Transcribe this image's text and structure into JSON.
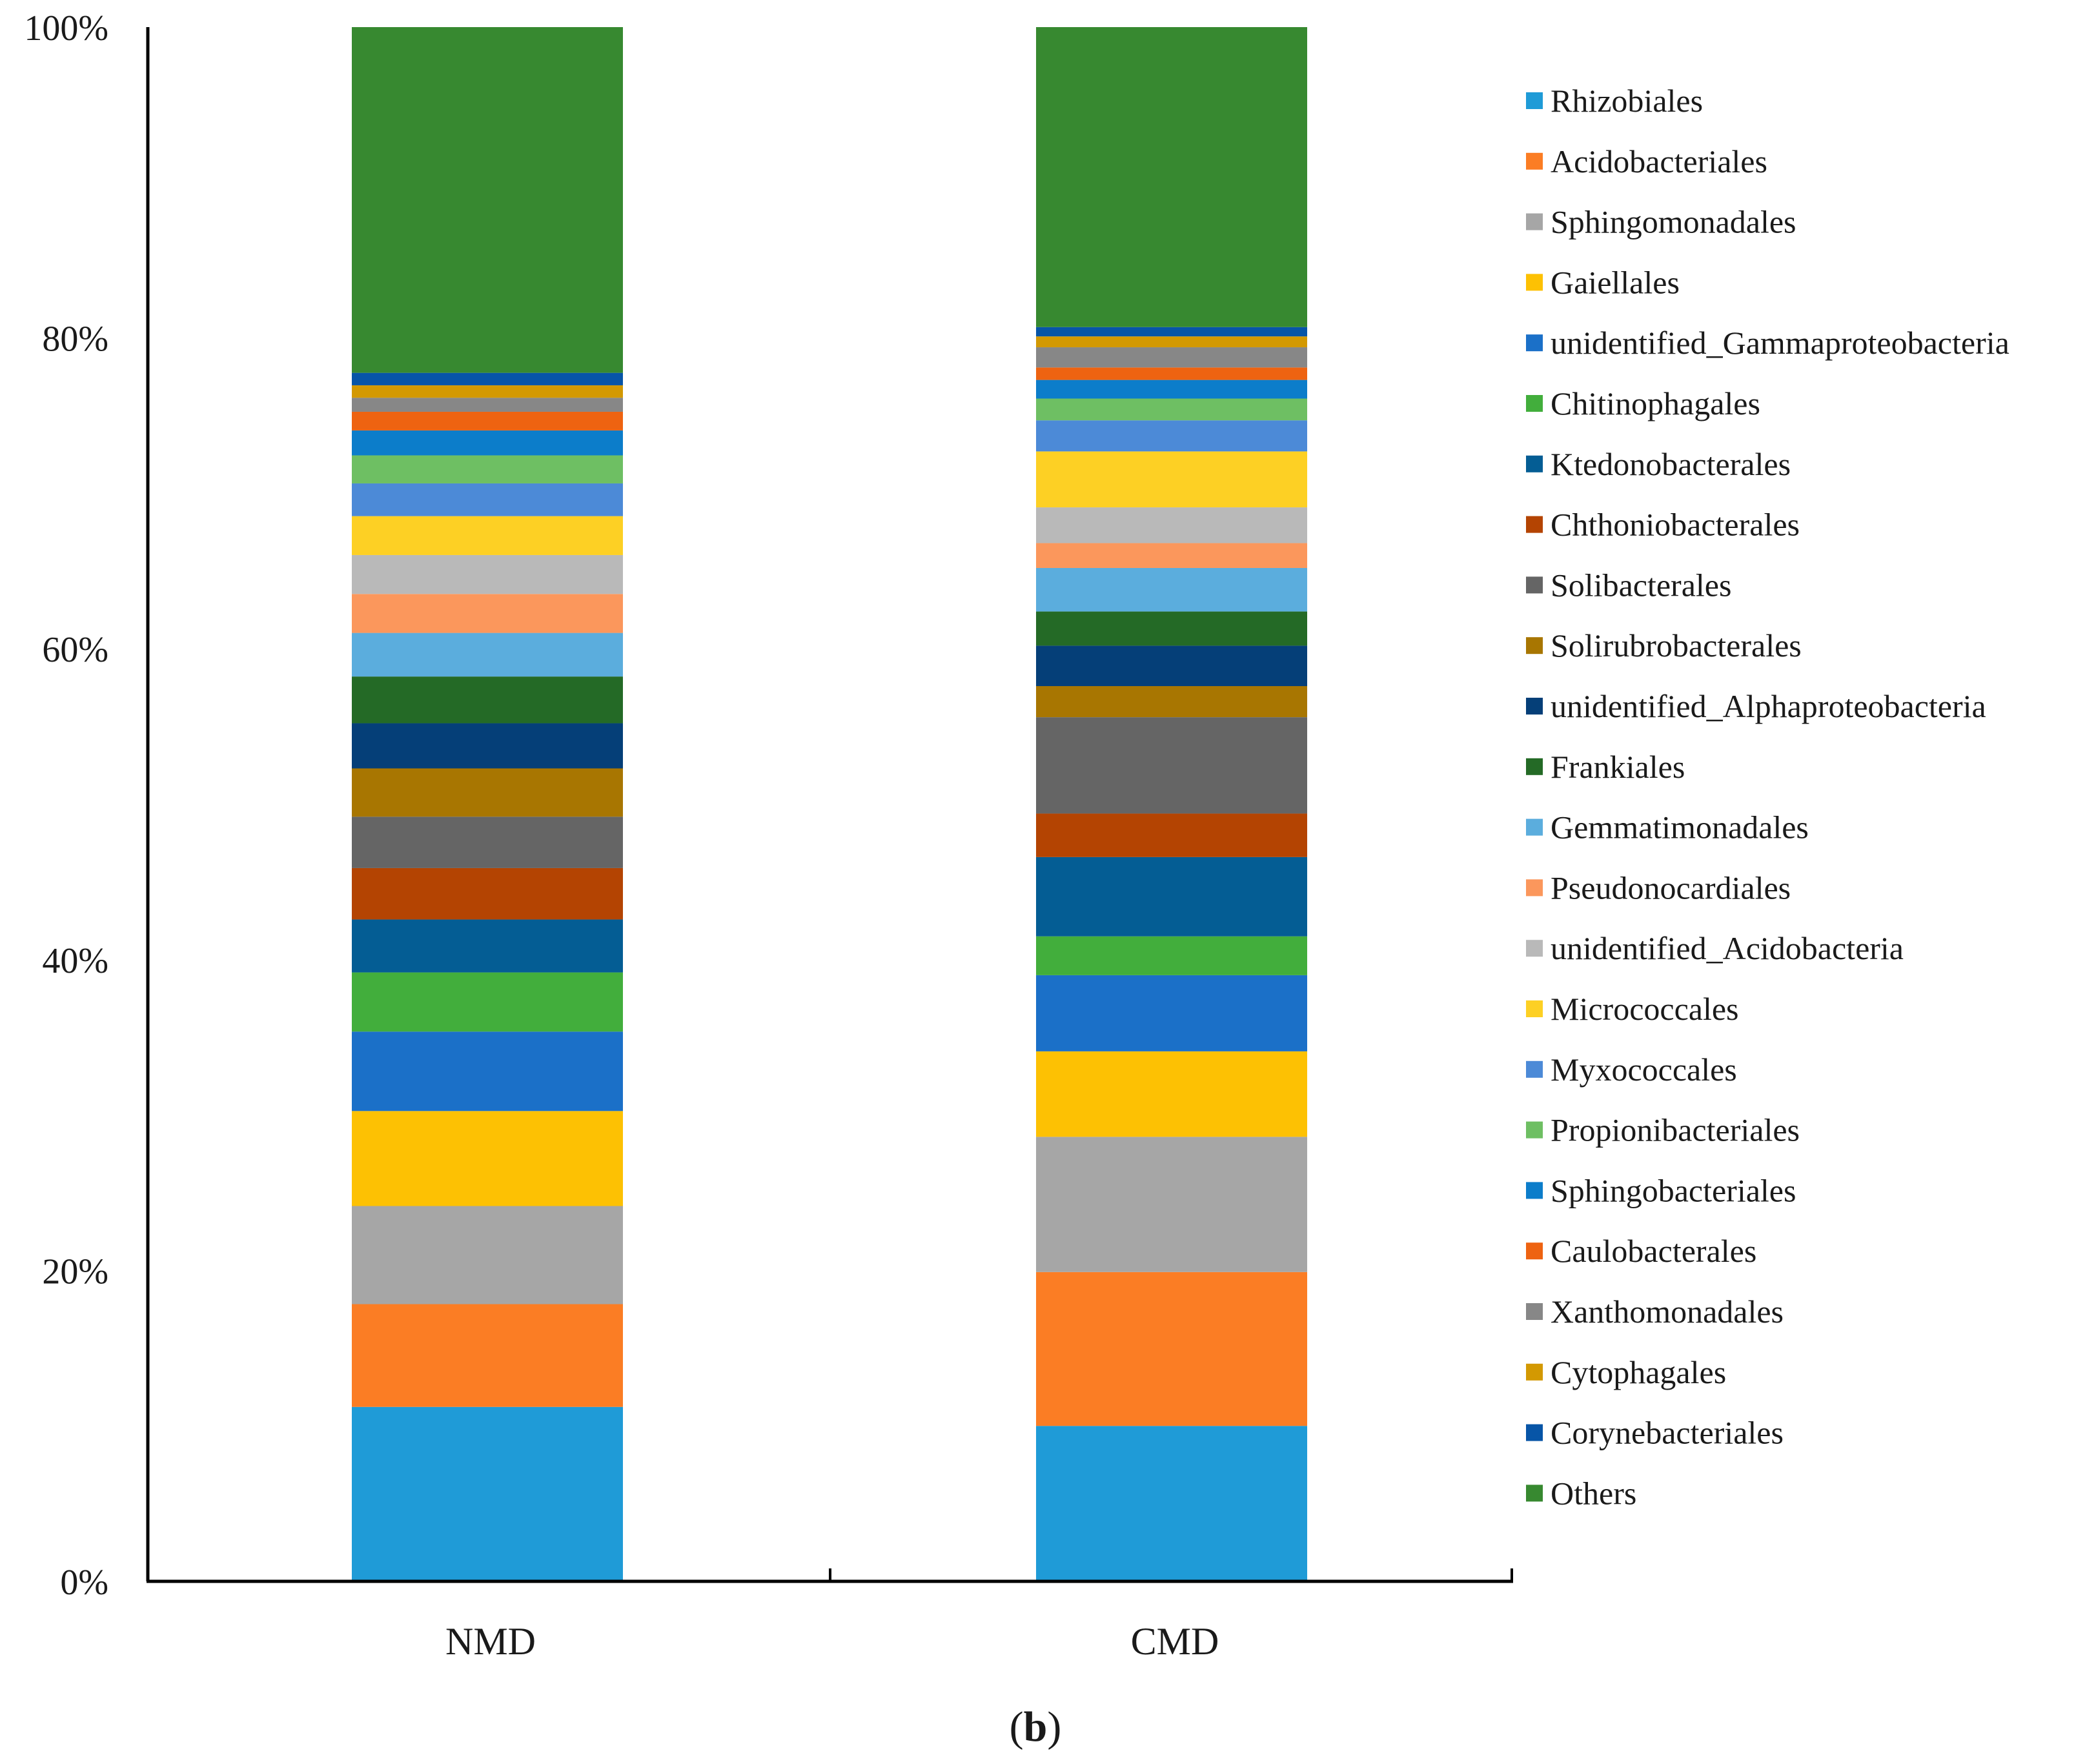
{
  "chart_data": {
    "type": "bar",
    "stacked": true,
    "panel_label": {
      "open": "(",
      "letter": "b",
      "close": ")"
    },
    "categories": [
      "NMD",
      "CMD"
    ],
    "y_tick_labels": [
      "0%",
      "20%",
      "40%",
      "60%",
      "80%",
      "100%"
    ],
    "ylim": [
      0,
      100
    ],
    "legend_position": "right",
    "series": [
      {
        "name": "Rhizobiales",
        "color": "#1f9bd7",
        "values": [
          11.2,
          10.0
        ]
      },
      {
        "name": "Acidobacteriales",
        "color": "#fb7d24",
        "values": [
          6.6,
          9.9
        ]
      },
      {
        "name": "Sphingomonadales",
        "color": "#a6a6a6",
        "values": [
          6.3,
          8.7
        ]
      },
      {
        "name": "Gaiellales",
        "color": "#fdc103",
        "values": [
          6.1,
          5.5
        ]
      },
      {
        "name": "unidentified_Gammaproteobacteria",
        "color": "#1b70c8",
        "values": [
          5.1,
          4.9
        ]
      },
      {
        "name": "Chitinophagales",
        "color": "#42ae3c",
        "values": [
          3.8,
          2.5
        ]
      },
      {
        "name": "Ktedonobacterales",
        "color": "#045d94",
        "values": [
          3.4,
          5.1
        ]
      },
      {
        "name": "Chthoniobacterales",
        "color": "#b44402",
        "values": [
          3.3,
          2.8
        ]
      },
      {
        "name": "Solibacterales",
        "color": "#656565",
        "values": [
          3.3,
          6.2
        ]
      },
      {
        "name": "Solirubrobacterales",
        "color": "#a87601",
        "values": [
          3.1,
          2.0
        ]
      },
      {
        "name": "unidentified_Alphaproteobacteria",
        "color": "#053f78",
        "values": [
          2.9,
          2.6
        ]
      },
      {
        "name": "Frankiales",
        "color": "#246a26",
        "values": [
          3.0,
          2.2
        ]
      },
      {
        "name": "Gemmatimonadales",
        "color": "#5baddd",
        "values": [
          2.8,
          2.8
        ]
      },
      {
        "name": "Pseudonocardiales",
        "color": "#fb975c",
        "values": [
          2.5,
          1.6
        ]
      },
      {
        "name": "unidentified_Acidobacteria",
        "color": "#b9b9b9",
        "values": [
          2.5,
          2.3
        ]
      },
      {
        "name": "Micrococcales",
        "color": "#fdd024",
        "values": [
          2.5,
          3.6
        ]
      },
      {
        "name": "Myxococcales",
        "color": "#4c8ad7",
        "values": [
          2.1,
          2.0
        ]
      },
      {
        "name": "Propionibacteriales",
        "color": "#6ebf63",
        "values": [
          1.8,
          1.4
        ]
      },
      {
        "name": "Sphingobacteriales",
        "color": "#0c7dca",
        "values": [
          1.6,
          1.2
        ]
      },
      {
        "name": "Caulobacterales",
        "color": "#ee6311",
        "values": [
          1.2,
          0.8
        ]
      },
      {
        "name": "Xanthomonadales",
        "color": "#878787",
        "values": [
          0.9,
          1.3
        ]
      },
      {
        "name": "Cytophagales",
        "color": "#d39902",
        "values": [
          0.8,
          0.7
        ]
      },
      {
        "name": "Corynebacteriales",
        "color": "#0755a7",
        "values": [
          0.8,
          0.6
        ]
      },
      {
        "name": "Others",
        "color": "#378930",
        "values": [
          22.2,
          19.3
        ]
      }
    ]
  }
}
